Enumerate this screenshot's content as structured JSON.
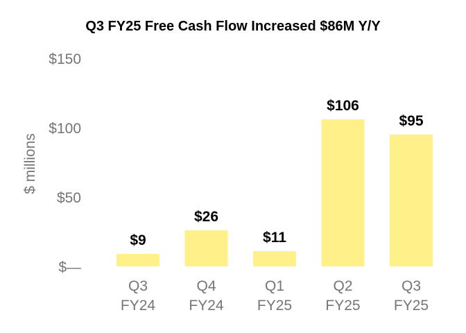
{
  "chart_data": {
    "type": "bar",
    "title": "Q3 FY25 Free Cash Flow Increased $86M Y/Y",
    "ylabel": "$ millions",
    "xlabel": "",
    "categories": [
      [
        "Q3",
        "FY24"
      ],
      [
        "Q4",
        "FY24"
      ],
      [
        "Q1",
        "FY25"
      ],
      [
        "Q2",
        "FY25"
      ],
      [
        "Q3",
        "FY25"
      ]
    ],
    "values": [
      9,
      26,
      11,
      106,
      95
    ],
    "data_labels": [
      "$9",
      "$26",
      "$11",
      "$106",
      "$95"
    ],
    "yticks": [
      {
        "value": 0,
        "label": "$—"
      },
      {
        "value": 50,
        "label": "$50"
      },
      {
        "value": 100,
        "label": "$100"
      },
      {
        "value": 150,
        "label": "$150"
      }
    ],
    "ylim": [
      0,
      150
    ],
    "grid": false,
    "legend": "none",
    "bar_color": "#FFF08A"
  }
}
